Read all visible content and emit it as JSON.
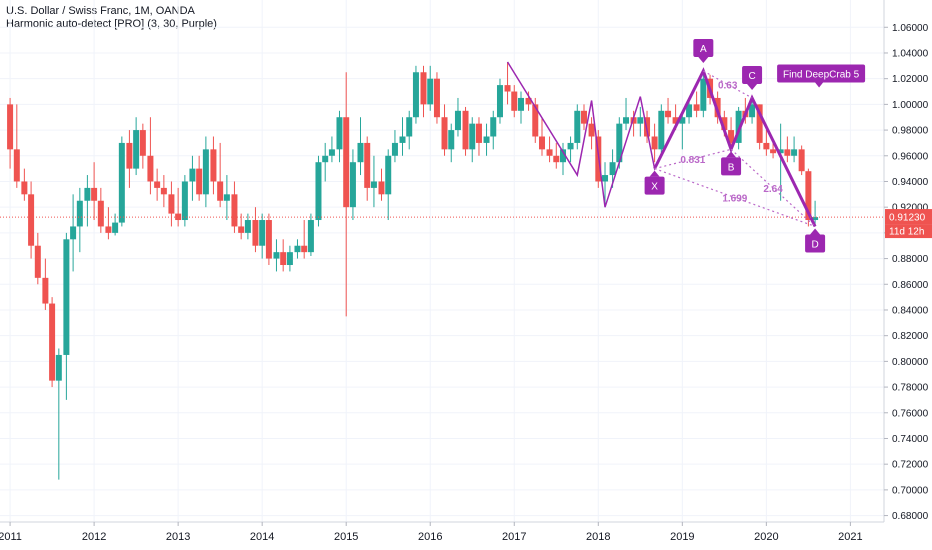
{
  "header": {
    "title": "U.S. Dollar / Swiss Franc, 1M, OANDA",
    "indicator": "Harmonic auto-detect [PRO] (3, 30, Purple)"
  },
  "colors": {
    "up": "#26a69a",
    "down": "#ef5350",
    "pattern": "#9c27b0",
    "pattern_light": "#ba68c8",
    "grid": "#f0f3fa",
    "axis_text": "#131722",
    "price_line": "#ef5350"
  },
  "price_label": {
    "value": "0.91230",
    "countdown": "11d 12h"
  },
  "chart_data": {
    "type": "candlestick",
    "ylim": [
      0.675,
      1.075
    ],
    "xlim": [
      2010.88,
      2021.4
    ],
    "y_ticks": [
      "0.68000",
      "0.70000",
      "0.72000",
      "0.74000",
      "0.76000",
      "0.78000",
      "0.80000",
      "0.82000",
      "0.84000",
      "0.86000",
      "0.88000",
      "0.90000",
      "0.92000",
      "0.94000",
      "0.96000",
      "0.98000",
      "1.00000",
      "1.02000",
      "1.04000",
      "1.06000"
    ],
    "x_ticks": [
      "2011",
      "2012",
      "2013",
      "2014",
      "2015",
      "2016",
      "2017",
      "2018",
      "2019",
      "2020",
      "2021"
    ],
    "current_price": 0.9123,
    "candles": [
      [
        2011.0,
        1.0,
        1.005,
        0.95,
        0.965
      ],
      [
        2011.08,
        0.965,
        1.0,
        0.935,
        0.94
      ],
      [
        2011.17,
        0.94,
        0.95,
        0.925,
        0.93
      ],
      [
        2011.25,
        0.93,
        0.94,
        0.88,
        0.89
      ],
      [
        2011.33,
        0.89,
        0.9,
        0.86,
        0.865
      ],
      [
        2011.42,
        0.865,
        0.88,
        0.84,
        0.845
      ],
      [
        2011.5,
        0.845,
        0.85,
        0.78,
        0.785
      ],
      [
        2011.58,
        0.785,
        0.81,
        0.708,
        0.805
      ],
      [
        2011.67,
        0.805,
        0.9,
        0.77,
        0.895
      ],
      [
        2011.75,
        0.895,
        0.93,
        0.87,
        0.905
      ],
      [
        2011.83,
        0.905,
        0.935,
        0.885,
        0.925
      ],
      [
        2011.92,
        0.925,
        0.945,
        0.905,
        0.935
      ],
      [
        2012.0,
        0.935,
        0.955,
        0.91,
        0.925
      ],
      [
        2012.08,
        0.925,
        0.935,
        0.9,
        0.905
      ],
      [
        2012.17,
        0.905,
        0.92,
        0.895,
        0.9
      ],
      [
        2012.25,
        0.9,
        0.915,
        0.898,
        0.908
      ],
      [
        2012.33,
        0.908,
        0.975,
        0.905,
        0.97
      ],
      [
        2012.42,
        0.97,
        0.98,
        0.935,
        0.95
      ],
      [
        2012.5,
        0.95,
        0.99,
        0.945,
        0.98
      ],
      [
        2012.58,
        0.98,
        0.985,
        0.95,
        0.96
      ],
      [
        2012.67,
        0.96,
        0.99,
        0.93,
        0.94
      ],
      [
        2012.75,
        0.94,
        0.95,
        0.925,
        0.935
      ],
      [
        2012.83,
        0.935,
        0.945,
        0.92,
        0.93
      ],
      [
        2012.92,
        0.93,
        0.94,
        0.905,
        0.915
      ],
      [
        2013.0,
        0.915,
        0.935,
        0.905,
        0.91
      ],
      [
        2013.08,
        0.91,
        0.945,
        0.905,
        0.94
      ],
      [
        2013.17,
        0.94,
        0.96,
        0.925,
        0.95
      ],
      [
        2013.25,
        0.95,
        0.96,
        0.925,
        0.93
      ],
      [
        2013.33,
        0.93,
        0.975,
        0.92,
        0.965
      ],
      [
        2013.42,
        0.965,
        0.975,
        0.93,
        0.94
      ],
      [
        2013.5,
        0.94,
        0.97,
        0.92,
        0.925
      ],
      [
        2013.58,
        0.925,
        0.945,
        0.91,
        0.93
      ],
      [
        2013.67,
        0.93,
        0.94,
        0.9,
        0.905
      ],
      [
        2013.75,
        0.905,
        0.915,
        0.895,
        0.9
      ],
      [
        2013.83,
        0.9,
        0.915,
        0.895,
        0.91
      ],
      [
        2013.92,
        0.91,
        0.92,
        0.885,
        0.89
      ],
      [
        2014.0,
        0.89,
        0.915,
        0.88,
        0.91
      ],
      [
        2014.08,
        0.91,
        0.915,
        0.875,
        0.88
      ],
      [
        2014.17,
        0.88,
        0.895,
        0.87,
        0.885
      ],
      [
        2014.25,
        0.885,
        0.895,
        0.87,
        0.875
      ],
      [
        2014.33,
        0.875,
        0.89,
        0.87,
        0.885
      ],
      [
        2014.42,
        0.885,
        0.895,
        0.88,
        0.89
      ],
      [
        2014.5,
        0.89,
        0.91,
        0.88,
        0.885
      ],
      [
        2014.58,
        0.885,
        0.915,
        0.882,
        0.91
      ],
      [
        2014.67,
        0.91,
        0.96,
        0.905,
        0.955
      ],
      [
        2014.75,
        0.955,
        0.97,
        0.94,
        0.96
      ],
      [
        2014.83,
        0.96,
        0.975,
        0.955,
        0.965
      ],
      [
        2014.92,
        0.965,
        0.995,
        0.955,
        0.99
      ],
      [
        2015.0,
        0.99,
        1.025,
        0.835,
        0.92
      ],
      [
        2015.08,
        0.92,
        0.965,
        0.91,
        0.955
      ],
      [
        2015.17,
        0.955,
        0.99,
        0.945,
        0.97
      ],
      [
        2015.25,
        0.97,
        0.975,
        0.925,
        0.935
      ],
      [
        2015.33,
        0.935,
        0.96,
        0.92,
        0.94
      ],
      [
        2015.42,
        0.94,
        0.95,
        0.925,
        0.93
      ],
      [
        2015.5,
        0.93,
        0.965,
        0.91,
        0.96
      ],
      [
        2015.58,
        0.96,
        0.98,
        0.955,
        0.97
      ],
      [
        2015.67,
        0.97,
        0.99,
        0.96,
        0.975
      ],
      [
        2015.75,
        0.975,
        0.995,
        0.965,
        0.99
      ],
      [
        2015.83,
        0.99,
        1.03,
        0.985,
        1.025
      ],
      [
        2015.92,
        1.025,
        1.03,
        0.99,
        1.0
      ],
      [
        2016.0,
        1.0,
        1.03,
        0.995,
        1.02
      ],
      [
        2016.08,
        1.02,
        1.025,
        0.985,
        0.99
      ],
      [
        2016.17,
        0.99,
        1.0,
        0.96,
        0.965
      ],
      [
        2016.25,
        0.965,
        0.985,
        0.955,
        0.98
      ],
      [
        2016.33,
        0.98,
        1.005,
        0.975,
        0.995
      ],
      [
        2016.42,
        0.995,
        0.998,
        0.96,
        0.965
      ],
      [
        2016.5,
        0.965,
        0.99,
        0.955,
        0.985
      ],
      [
        2016.58,
        0.985,
        0.99,
        0.96,
        0.97
      ],
      [
        2016.67,
        0.97,
        0.985,
        0.96,
        0.975
      ],
      [
        2016.75,
        0.975,
        0.995,
        0.965,
        0.99
      ],
      [
        2016.83,
        0.99,
        1.02,
        0.985,
        1.015
      ],
      [
        2016.92,
        1.015,
        1.033,
        1.0,
        1.01
      ],
      [
        2017.0,
        1.01,
        1.015,
        0.99,
        0.995
      ],
      [
        2017.08,
        0.995,
        1.01,
        0.985,
        1.005
      ],
      [
        2017.17,
        1.005,
        1.01,
        0.995,
        1.0
      ],
      [
        2017.25,
        1.0,
        1.005,
        0.97,
        0.975
      ],
      [
        2017.33,
        0.975,
        0.99,
        0.96,
        0.965
      ],
      [
        2017.42,
        0.965,
        0.975,
        0.955,
        0.96
      ],
      [
        2017.5,
        0.96,
        0.97,
        0.95,
        0.955
      ],
      [
        2017.58,
        0.955,
        0.97,
        0.945,
        0.965
      ],
      [
        2017.67,
        0.965,
        0.975,
        0.955,
        0.97
      ],
      [
        2017.75,
        0.97,
        1.0,
        0.965,
        0.995
      ],
      [
        2017.83,
        0.995,
        1.0,
        0.98,
        0.985
      ],
      [
        2017.92,
        0.985,
        0.99,
        0.965,
        0.975
      ],
      [
        2018.0,
        0.975,
        0.98,
        0.935,
        0.94
      ],
      [
        2018.08,
        0.94,
        0.955,
        0.92,
        0.945
      ],
      [
        2018.17,
        0.945,
        0.965,
        0.935,
        0.955
      ],
      [
        2018.25,
        0.955,
        0.99,
        0.95,
        0.985
      ],
      [
        2018.33,
        0.985,
        1.005,
        0.98,
        0.99
      ],
      [
        2018.42,
        0.99,
        0.995,
        0.975,
        0.985
      ],
      [
        2018.5,
        0.985,
        0.998,
        0.975,
        0.99
      ],
      [
        2018.58,
        0.99,
        0.995,
        0.97,
        0.975
      ],
      [
        2018.67,
        0.975,
        0.985,
        0.955,
        0.965
      ],
      [
        2018.75,
        0.965,
        1.0,
        0.96,
        0.995
      ],
      [
        2018.83,
        0.995,
        1.005,
        0.985,
        0.99
      ],
      [
        2018.92,
        0.99,
        1.0,
        0.98,
        0.985
      ],
      [
        2019.0,
        0.985,
        0.992,
        0.965,
        0.99
      ],
      [
        2019.08,
        0.99,
        1.005,
        0.985,
        1.0
      ],
      [
        2019.17,
        1.0,
        1.01,
        0.99,
        0.995
      ],
      [
        2019.25,
        0.995,
        1.025,
        0.99,
        1.02
      ],
      [
        2019.33,
        1.02,
        1.023,
        1.0,
        1.005
      ],
      [
        2019.42,
        1.005,
        1.01,
        0.985,
        0.99
      ],
      [
        2019.5,
        0.99,
        0.995,
        0.975,
        0.98
      ],
      [
        2019.58,
        0.98,
        0.99,
        0.965,
        0.97
      ],
      [
        2019.67,
        0.97,
        0.998,
        0.965,
        0.995
      ],
      [
        2019.75,
        0.995,
        1.005,
        0.985,
        0.99
      ],
      [
        2019.83,
        0.99,
        1.003,
        0.985,
        1.0
      ],
      [
        2019.92,
        1.0,
        1.0,
        0.965,
        0.97
      ],
      [
        2020.0,
        0.97,
        0.98,
        0.96,
        0.965
      ],
      [
        2020.08,
        0.965,
        0.97,
        0.958,
        0.962
      ],
      [
        2020.17,
        0.962,
        0.985,
        0.925,
        0.965
      ],
      [
        2020.25,
        0.965,
        0.975,
        0.955,
        0.96
      ],
      [
        2020.33,
        0.96,
        0.975,
        0.955,
        0.965
      ],
      [
        2020.42,
        0.965,
        0.968,
        0.945,
        0.948
      ],
      [
        2020.5,
        0.948,
        0.95,
        0.905,
        0.91
      ],
      [
        2020.58,
        0.91,
        0.925,
        0.905,
        0.9123
      ]
    ],
    "zigzag": [
      [
        2016.92,
        1.033
      ],
      [
        2017.75,
        0.945
      ],
      [
        2017.92,
        1.003
      ],
      [
        2018.08,
        0.92
      ],
      [
        2018.5,
        1.006
      ],
      [
        2018.67,
        0.95
      ],
      [
        2019.25,
        1.026
      ],
      [
        2019.58,
        0.965
      ],
      [
        2019.83,
        1.005
      ],
      [
        2020.58,
        0.905
      ]
    ],
    "pattern": {
      "name": "Find DeepCrab 5",
      "points": [
        {
          "label": "X",
          "x": 2018.67,
          "y": 0.95
        },
        {
          "label": "A",
          "x": 2019.25,
          "y": 1.026
        },
        {
          "label": "B",
          "x": 2019.58,
          "y": 0.965
        },
        {
          "label": "C",
          "x": 2019.83,
          "y": 1.005
        },
        {
          "label": "D",
          "x": 2020.58,
          "y": 0.905
        }
      ],
      "ratios": [
        {
          "text": "0.63",
          "from": "A",
          "to": "C"
        },
        {
          "text": "0.831",
          "from": "X",
          "to": "B"
        },
        {
          "text": "1.699",
          "from": "X",
          "to": "D"
        },
        {
          "text": "2.64",
          "from": "B",
          "to": "D"
        }
      ]
    }
  }
}
